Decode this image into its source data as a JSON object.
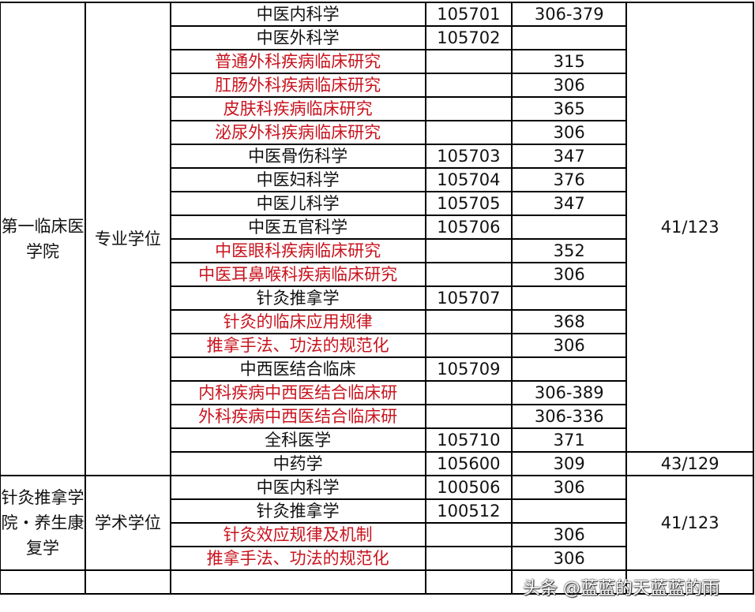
{
  "sections": [
    {
      "college": "第一临床医学院",
      "degree_type": "专业学位",
      "rows": [
        {
          "major": "中医内科学",
          "code": "105701",
          "score": "306-379",
          "red": false
        },
        {
          "major": "中医外科学",
          "code": "105702",
          "score": "",
          "red": false
        },
        {
          "major": "普通外科疾病临床研究",
          "code": "",
          "score": "315",
          "red": true
        },
        {
          "major": "肛肠外科疾病临床研究",
          "code": "",
          "score": "306",
          "red": true
        },
        {
          "major": "皮肤科疾病临床研究",
          "code": "",
          "score": "365",
          "red": true
        },
        {
          "major": "泌尿外科疾病临床研究",
          "code": "",
          "score": "306",
          "red": true
        },
        {
          "major": "中医骨伤科学",
          "code": "105703",
          "score": "347",
          "red": false
        },
        {
          "major": "中医妇科学",
          "code": "105704",
          "score": "376",
          "red": false
        },
        {
          "major": "中医儿科学",
          "code": "105705",
          "score": "347",
          "red": false
        },
        {
          "major": "中医五官科学",
          "code": "105706",
          "score": "",
          "red": false
        },
        {
          "major": "中医眼科疾病临床研究",
          "code": "",
          "score": "352",
          "red": true
        },
        {
          "major": "中医耳鼻喉科疾病临床研究",
          "code": "",
          "score": "306",
          "red": true
        },
        {
          "major": "针灸推拿学",
          "code": "105707",
          "score": "",
          "red": false
        },
        {
          "major": "针灸的临床应用规律",
          "code": "",
          "score": "368",
          "red": true
        },
        {
          "major": "推拿手法、功法的规范化",
          "code": "",
          "score": "306",
          "red": true
        },
        {
          "major": "中西医结合临床",
          "code": "105709",
          "score": "",
          "red": false
        },
        {
          "major": "内科疾病中西医结合临床研",
          "code": "",
          "score": "306-389",
          "red": true
        },
        {
          "major": "外科疾病中西医结合临床研",
          "code": "",
          "score": "306-336",
          "red": true
        },
        {
          "major": "全科医学",
          "code": "105710",
          "score": "371",
          "red": false
        },
        {
          "major": "中药学",
          "code": "105600",
          "score": "309",
          "red": false
        }
      ],
      "line_groups": [
        {
          "value": "41/123",
          "span": 19
        },
        {
          "value": "43/129",
          "span": 1
        }
      ]
    },
    {
      "college": "针灸推拿学院・养生康复学",
      "degree_type": "学术学位",
      "rows": [
        {
          "major": "中医内科学",
          "code": "100506",
          "score": "306",
          "red": false
        },
        {
          "major": "针灸推拿学",
          "code": "100512",
          "score": "",
          "red": false
        },
        {
          "major": "针灸效应规律及机制",
          "code": "",
          "score": "306",
          "red": true
        },
        {
          "major": "推拿手法、功法的规范化",
          "code": "",
          "score": "306",
          "red": true
        }
      ],
      "line_groups": [
        {
          "value": "41/123",
          "span": 4
        }
      ]
    }
  ],
  "watermark": "头条 @蓝蓝的天蓝蓝的雨"
}
